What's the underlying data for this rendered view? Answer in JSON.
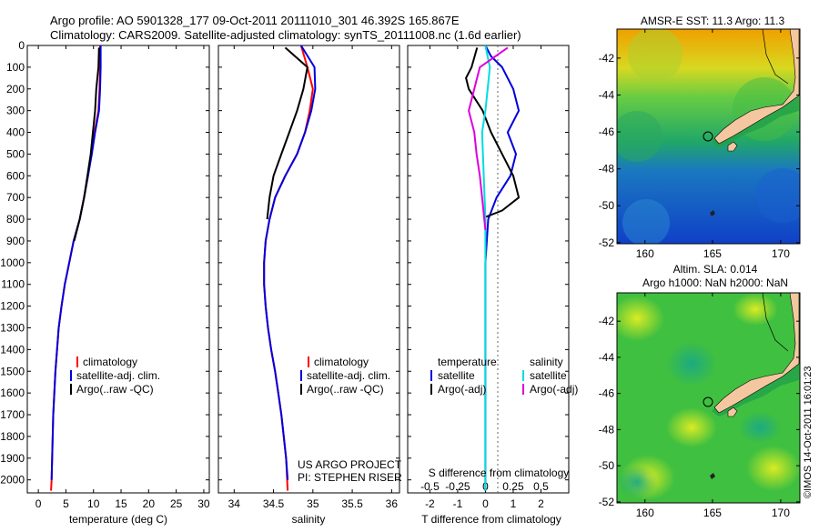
{
  "header": {
    "line1": "Argo profile: AO 5901328_177 09-Oct-2011 20111010_301 46.392S 165.867E",
    "line2": "Climatology: CARS2009. Satellite-adjusted climatology: synTS_20111008.nc (1.6d earlier)"
  },
  "colors": {
    "climatology": "#ff0000",
    "satellite": "#0000dd",
    "argo": "#000000",
    "salinity_satellite": "#00dddd",
    "salinity_argo": "#dd00dd",
    "land": "#f5c7a0"
  },
  "legends": {
    "profile": [
      "climatology",
      "satellite-adj. clim.",
      "Argo(..raw -QC)"
    ],
    "difference": {
      "temperature_head": "temperature",
      "salinity_head": "salinity",
      "temperature_items": [
        "satellite",
        "Argo(-adj)"
      ],
      "salinity_items": [
        "satellite",
        "Argo(-adj)"
      ]
    }
  },
  "credits": {
    "project": "US ARGO PROJECT",
    "pi": "PI: STEPHEN RISER",
    "imos": "©IMOS 14-Oct-2011 16:01:23"
  },
  "maps": {
    "sst_title": "AMSR-E SST: 11.3 Argo: 11.3",
    "sla_title1": "Altim. SLA: 0.014",
    "sla_title2": "Argo h1000: NaN h2000: NaN",
    "lon_ticks": [
      "160",
      "165",
      "170"
    ],
    "lat_ticks": [
      "-42",
      "-44",
      "-46",
      "-48",
      "-50",
      "-52"
    ]
  },
  "chart_data": [
    {
      "type": "line",
      "xlabel": "temperature (deg C)",
      "ylabel": "",
      "xlim": [
        -2,
        31
      ],
      "ylim": [
        2060,
        0
      ],
      "y_inverted": true,
      "x_ticks": [
        "0",
        "5",
        "10",
        "15",
        "20",
        "25",
        "30"
      ],
      "y_ticks": [
        "0",
        "100",
        "200",
        "300",
        "400",
        "500",
        "600",
        "700",
        "800",
        "900",
        "1000",
        "1100",
        "1200",
        "1300",
        "1400",
        "1500",
        "1600",
        "1700",
        "1800",
        "1900",
        "2000"
      ],
      "series": [
        {
          "name": "climatology",
          "color": "#ff0000",
          "x": [
            11.2,
            11.2,
            11.1,
            10.9,
            10.2,
            9.6,
            9.0,
            8.3,
            7.5,
            6.4,
            5.6,
            4.8,
            4.2,
            3.7,
            3.4,
            3.1,
            2.9,
            2.7,
            2.6,
            2.5,
            2.4,
            2.3
          ],
          "y": [
            0,
            100,
            200,
            300,
            400,
            500,
            600,
            700,
            800,
            900,
            1000,
            1100,
            1200,
            1300,
            1400,
            1500,
            1600,
            1700,
            1800,
            1900,
            2000,
            2050
          ]
        },
        {
          "name": "satellite-adj. clim.",
          "color": "#0000dd",
          "x": [
            11.3,
            11.3,
            11.2,
            11.0,
            10.3,
            9.7,
            9.0,
            8.3,
            7.5,
            6.4,
            5.6,
            4.8,
            4.2,
            3.7,
            3.4,
            3.1,
            2.9,
            2.7,
            2.6,
            2.5,
            2.4
          ],
          "y": [
            0,
            100,
            200,
            300,
            400,
            500,
            600,
            700,
            800,
            900,
            1000,
            1100,
            1200,
            1300,
            1400,
            1500,
            1600,
            1700,
            1800,
            1900,
            2000
          ]
        },
        {
          "name": "Argo(..raw -QC)",
          "color": "#000000",
          "x": [
            11.0,
            10.9,
            10.5,
            10.3,
            9.9,
            9.5,
            8.9,
            8.3,
            7.5,
            6.5
          ],
          "y": [
            10,
            100,
            200,
            300,
            400,
            500,
            600,
            700,
            800,
            900
          ]
        }
      ]
    },
    {
      "type": "line",
      "xlabel": "salinity",
      "ylabel": "",
      "xlim": [
        33.8,
        36.1
      ],
      "ylim": [
        2060,
        0
      ],
      "y_inverted": true,
      "x_ticks": [
        "34",
        "34.5",
        "35",
        "35.5",
        "36"
      ],
      "series": [
        {
          "name": "climatology",
          "color": "#ff0000",
          "x": [
            34.85,
            34.93,
            35.0,
            34.96,
            34.9,
            34.8,
            34.65,
            34.52,
            34.45,
            34.4,
            34.38,
            34.38,
            34.4,
            34.43,
            34.47,
            34.52,
            34.56,
            34.6,
            34.63,
            34.66,
            34.68
          ],
          "y": [
            0,
            100,
            200,
            300,
            400,
            500,
            600,
            700,
            800,
            900,
            1000,
            1100,
            1200,
            1300,
            1400,
            1500,
            1600,
            1700,
            1800,
            1900,
            2050
          ]
        },
        {
          "name": "satellite-adj. clim.",
          "color": "#0000dd",
          "x": [
            34.85,
            35.02,
            35.03,
            34.98,
            34.9,
            34.8,
            34.65,
            34.52,
            34.45,
            34.4,
            34.38,
            34.38,
            34.4,
            34.43,
            34.47,
            34.52,
            34.56,
            34.6,
            34.63,
            34.66,
            34.68
          ],
          "y": [
            0,
            100,
            200,
            300,
            400,
            500,
            600,
            700,
            800,
            900,
            1000,
            1100,
            1200,
            1300,
            1400,
            1500,
            1600,
            1700,
            1800,
            1900,
            2000
          ]
        },
        {
          "name": "Argo(..raw -QC)",
          "color": "#000000",
          "x": [
            34.65,
            34.93,
            34.88,
            34.8,
            34.7,
            34.6,
            34.5,
            34.45,
            34.42
          ],
          "y": [
            10,
            100,
            200,
            300,
            400,
            500,
            600,
            700,
            800
          ]
        }
      ]
    },
    {
      "type": "line",
      "xlabel": "T difference from climatology",
      "top_axis_label": "S difference from climatology",
      "xlim": [
        -2.8,
        3.0
      ],
      "top_xlim": [
        -0.7,
        0.75
      ],
      "ylim": [
        2060,
        0
      ],
      "y_inverted": true,
      "x_ticks": [
        "-2",
        "-1",
        "0",
        "1",
        "2"
      ],
      "top_x_ticks": [
        "-0.5",
        "-0.25",
        "0",
        "0.25",
        "0.5"
      ],
      "series": [
        {
          "name": "temperature satellite",
          "color": "#0000dd",
          "axis": "T",
          "x": [
            0.0,
            0.2,
            0.6,
            1.0,
            1.2,
            0.8,
            1.1,
            0.9,
            0.4,
            0.1,
            0.0,
            0.0
          ],
          "y": [
            0,
            50,
            100,
            200,
            300,
            400,
            500,
            600,
            700,
            800,
            1000,
            2050
          ]
        },
        {
          "name": "temperature Argo(-adj)",
          "color": "#000000",
          "axis": "T",
          "x": [
            -0.3,
            -0.5,
            -0.7,
            -0.6,
            -0.1,
            0.2,
            0.6,
            1.0,
            1.2,
            0.6,
            0.0
          ],
          "y": [
            10,
            100,
            150,
            200,
            300,
            400,
            500,
            600,
            700,
            760,
            790
          ]
        },
        {
          "name": "salinity satellite",
          "color": "#00dddd",
          "axis": "S",
          "x": [
            0.0,
            0.04,
            0.02,
            0.0,
            -0.03,
            0.0,
            0.0
          ],
          "y": [
            0,
            100,
            200,
            300,
            400,
            800,
            2050
          ]
        },
        {
          "name": "salinity Argo(-adj)",
          "color": "#dd00dd",
          "axis": "S",
          "x": [
            0.2,
            -0.05,
            -0.1,
            -0.15,
            -0.1,
            -0.08,
            -0.05,
            -0.03,
            -0.01,
            0.0
          ],
          "y": [
            10,
            100,
            200,
            300,
            400,
            500,
            600,
            700,
            800,
            850
          ]
        }
      ]
    }
  ]
}
